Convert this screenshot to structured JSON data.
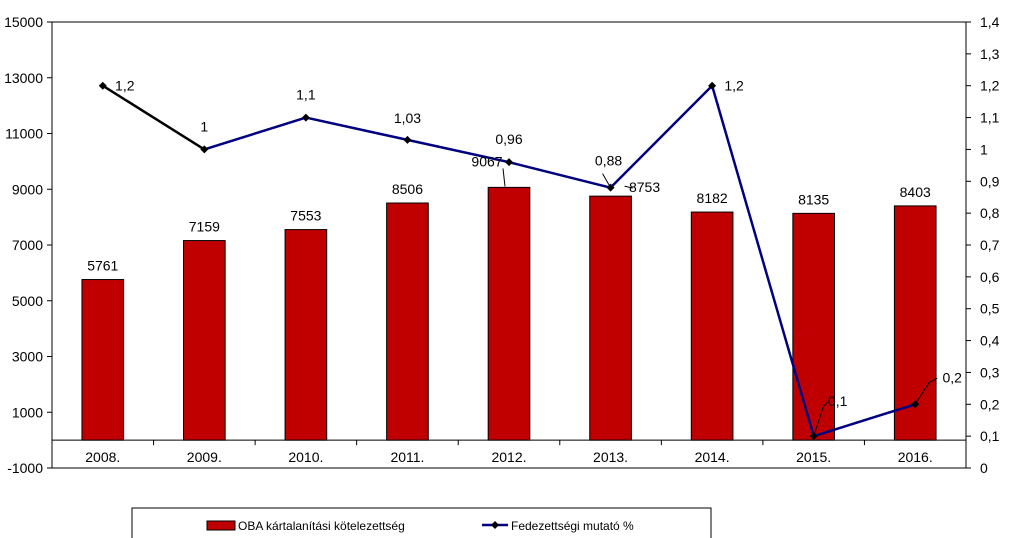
{
  "chart_data": {
    "type": "bar+line",
    "categories": [
      "2008.",
      "2009.",
      "2010.",
      "2011.",
      "2012.",
      "2013.",
      "2014.",
      "2015.",
      "2016."
    ],
    "series": [
      {
        "name": "OBA kártalanítási kötelezettség",
        "type": "bar",
        "axis": "left",
        "color": "#c00000",
        "values": [
          5761,
          7159,
          7553,
          8506,
          9067,
          8753,
          8182,
          8135,
          8403
        ],
        "labels": [
          "5761",
          "7159",
          "7553",
          "8506",
          "9067",
          "8753",
          "8182",
          "8135",
          "8403"
        ]
      },
      {
        "name": "Fedezettségi mutató %",
        "type": "line",
        "axis": "right",
        "color": "#000080",
        "first_segment_color": "#000000",
        "values": [
          1.2,
          1.0,
          1.1,
          1.03,
          0.96,
          0.88,
          1.2,
          0.1,
          0.2
        ],
        "labels": [
          "1,2",
          "1",
          "1,1",
          "1,03",
          "0,96",
          "0,88",
          "1,2",
          "0,1",
          "0,2"
        ]
      }
    ],
    "y_left": {
      "min": -1000,
      "max": 15000,
      "ticks": [
        15000,
        13000,
        11000,
        9000,
        7000,
        5000,
        3000,
        1000,
        -1000
      ],
      "tick_labels": [
        "15000",
        "13000",
        "11000",
        "9000",
        "7000",
        "5000",
        "3000",
        "1000",
        "-1000"
      ]
    },
    "y_right": {
      "min": 0,
      "max": 1.4,
      "ticks": [
        1.4,
        1.3,
        1.2,
        1.1,
        1.0,
        0.9,
        0.8,
        0.7,
        0.6,
        0.5,
        0.4,
        0.3,
        0.2,
        0.1,
        0
      ],
      "tick_labels": [
        "1,4",
        "1,3",
        "1,2",
        "1,1",
        "1",
        "0,9",
        "0,8",
        "0,7",
        "0,6",
        "0,5",
        "0,4",
        "0,3",
        "0,2",
        "0,1",
        "0"
      ]
    },
    "category_axis_at": 0,
    "grid": false,
    "legend_position": "bottom"
  }
}
